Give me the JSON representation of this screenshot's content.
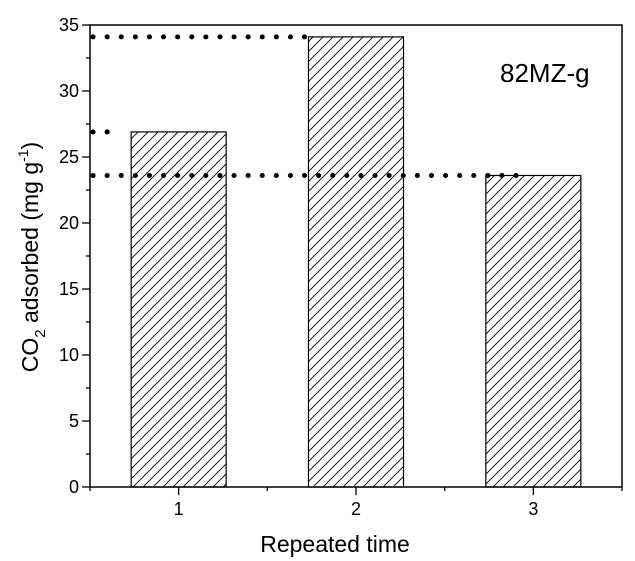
{
  "chart_data": {
    "type": "bar",
    "annotation": "82MZ-g",
    "xlabel": "Repeated time",
    "ylabel_parts": {
      "pre": "CO",
      "sub": "2",
      "mid": " adsorbed (mg g",
      "sup": "-1",
      "post": ")"
    },
    "categories": [
      "1",
      "2",
      "3"
    ],
    "values": [
      26.9,
      34.1,
      23.6
    ],
    "ylim": [
      0,
      35
    ],
    "xlim": [
      0.5,
      3.5
    ],
    "yticks": [
      0,
      5,
      10,
      15,
      20,
      25,
      30,
      35
    ],
    "bar_fill": "diagonal-hatch",
    "bar_edge_color": "#000000",
    "reference_lines": [
      {
        "y": 34.1,
        "x_from": 0.5,
        "x_to": 1.75,
        "style": "dotted"
      },
      {
        "y": 26.9,
        "x_from": 0.5,
        "x_to": 0.6,
        "style": "dotted"
      },
      {
        "y": 23.6,
        "x_from": 0.5,
        "x_to": 2.95,
        "style": "dotted"
      }
    ],
    "grid": false,
    "legend": "none"
  }
}
